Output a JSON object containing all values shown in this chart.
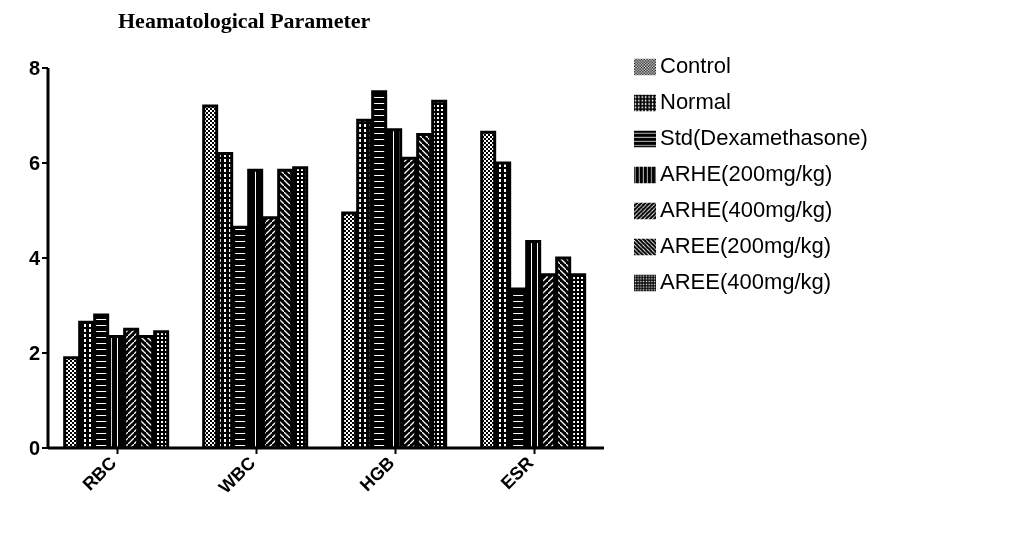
{
  "chart_data": {
    "type": "bar",
    "title": "Heamatological Parameter",
    "categories": [
      "RBC",
      "WBC",
      "HGB",
      "ESR"
    ],
    "series": [
      {
        "name": "Control",
        "color": "#000000",
        "values": [
          1.9,
          7.2,
          4.95,
          6.65
        ]
      },
      {
        "name": "Normal",
        "color": "#000000",
        "values": [
          2.65,
          6.2,
          6.9,
          6.0
        ]
      },
      {
        "name": "Std(Dexamethasone)",
        "color": "#000000",
        "values": [
          2.8,
          4.65,
          7.5,
          3.35
        ]
      },
      {
        "name": "ARHE(200mg/kg)",
        "color": "#000000",
        "values": [
          2.35,
          5.85,
          6.7,
          4.35
        ]
      },
      {
        "name": "ARHE(400mg/kg)",
        "color": "#000000",
        "values": [
          2.5,
          4.85,
          6.1,
          3.65
        ]
      },
      {
        "name": "AREE(200mg/kg)",
        "color": "#000000",
        "values": [
          2.35,
          5.85,
          6.6,
          4.0
        ]
      },
      {
        "name": "AREE(400mg/kg)",
        "color": "#000000",
        "values": [
          2.45,
          5.9,
          7.3,
          3.65
        ]
      }
    ],
    "ylim": [
      0,
      8
    ],
    "yticks": [
      0,
      2,
      4,
      6,
      8
    ],
    "grid": false,
    "legend": "top right"
  }
}
